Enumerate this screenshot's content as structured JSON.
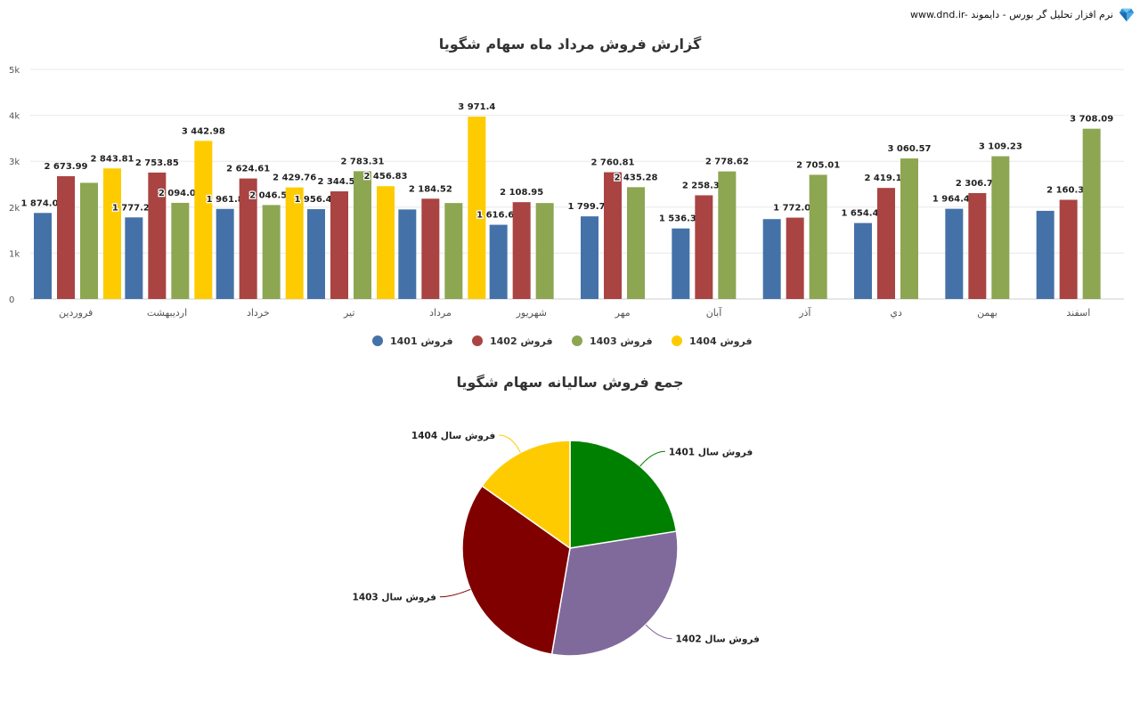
{
  "header": {
    "brand_text": "www.dnd.ir- نرم افزار تحلیل گر بورس - دایموند",
    "logo_icon": "diamond-icon"
  },
  "chart_data": [
    {
      "type": "bar",
      "title": "گزارش فروش مرداد ماه سهام شگویا",
      "xlabel": "",
      "ylabel": "",
      "ylim": [
        0,
        5000
      ],
      "y_ticks": [
        "0",
        "1k",
        "2k",
        "3k",
        "4k",
        "5k"
      ],
      "grid": true,
      "legend_position": "bottom",
      "categories": [
        "فروردین",
        "اردیبهشت",
        "خرداد",
        "تیر",
        "مرداد",
        "شهریور",
        "مهر",
        "آبان",
        "آذر",
        "دي",
        "بهمن",
        "اسفند"
      ],
      "series": [
        {
          "name": "فروش 1401",
          "color": "#4472a8",
          "values": [
            1874.08,
            1777.29,
            1961.8,
            1956.44,
            1950,
            1616.62,
            1799.76,
            1536.37,
            1740,
            1654.43,
            1964.44,
            1920
          ],
          "labels": [
            "1 874.08",
            "1 777.29",
            "1 961.8",
            "1 956.44",
            null,
            "1 616.62",
            "1 799.76",
            "1 536.37",
            null,
            "1 654.43",
            "1 964.44",
            null
          ]
        },
        {
          "name": "فروش 1402",
          "color": "#a94442",
          "values": [
            2673.99,
            2753.85,
            2624.61,
            2344.52,
            2184.52,
            2108.95,
            2760.81,
            2258.37,
            1772.01,
            2419.15,
            2306.74,
            2160.35
          ],
          "labels": [
            "2 673.99",
            "2 753.85",
            "2 624.61",
            "2 344.52",
            "2 184.52",
            "2 108.95",
            "2 760.81",
            "2 258.37",
            "1 772.01",
            "2 419.15",
            "2 306.74",
            "2 160.35"
          ]
        },
        {
          "name": "فروش 1403",
          "color": "#8ca652",
          "values": [
            2530,
            2094.02,
            2046.56,
            2783.31,
            2090,
            2090,
            2435.28,
            2778.62,
            2705.01,
            3060.57,
            3109.23,
            3708.09
          ],
          "labels": [
            null,
            "2 094.02",
            "2 046.56",
            "2 783.31",
            null,
            null,
            "2 435.28",
            "2 778.62",
            "2 705.01",
            "3 060.57",
            "3 109.23",
            "3 708.09"
          ]
        },
        {
          "name": "فروش 1404",
          "color": "#fecb00",
          "values": [
            2843.81,
            3442.98,
            2429.76,
            2456.83,
            3971.4,
            null,
            null,
            null,
            null,
            null,
            null,
            null
          ],
          "labels": [
            "2 843.81",
            "3 442.98",
            "2 429.76",
            "2 456.83",
            "3 971.4",
            null,
            null,
            null,
            null,
            null,
            null,
            null
          ]
        }
      ]
    },
    {
      "type": "pie",
      "title": "جمع فروش سالیانه سهام شگویا",
      "slices": [
        {
          "label": "فروش سال 1401",
          "value": 22.5,
          "color": "#008000"
        },
        {
          "label": "فروش سال 1402",
          "value": 30.2,
          "color": "#80699b"
        },
        {
          "label": "فروش سال 1403",
          "value": 32.1,
          "color": "#800000"
        },
        {
          "label": "فروش سال 1404",
          "value": 15.2,
          "color": "#fecb00"
        }
      ]
    }
  ]
}
